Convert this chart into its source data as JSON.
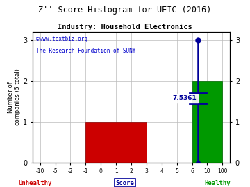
{
  "title": "Z''-Score Histogram for UEIC (2016)",
  "subtitle": "Industry: Household Electronics",
  "watermark1": "©www.textbiz.org",
  "watermark2": "The Research Foundation of SUNY",
  "xlabel_center": "Score",
  "xlabel_left": "Unhealthy",
  "xlabel_right": "Healthy",
  "ylabel": "Number of\ncompanies (5 total)",
  "xtick_labels": [
    "-10",
    "-5",
    "-2",
    "-1",
    "0",
    "1",
    "2",
    "3",
    "4",
    "5",
    "6",
    "10",
    "100"
  ],
  "yticks": [
    0,
    1,
    2,
    3
  ],
  "ylim": [
    0,
    3.2
  ],
  "red_bar_height": 1,
  "red_bar_color": "#cc0000",
  "green_bar_height": 2,
  "green_bar_color": "#009900",
  "marker_label": "7.5361",
  "marker_color": "#000099",
  "title_color": "#000000",
  "subtitle_color": "#000000",
  "watermark1_color": "#0000cc",
  "watermark2_color": "#0000cc",
  "unhealthy_color": "#cc0000",
  "healthy_color": "#009900",
  "score_color": "#000099",
  "bg_color": "#ffffff",
  "grid_color": "#bbbbbb"
}
